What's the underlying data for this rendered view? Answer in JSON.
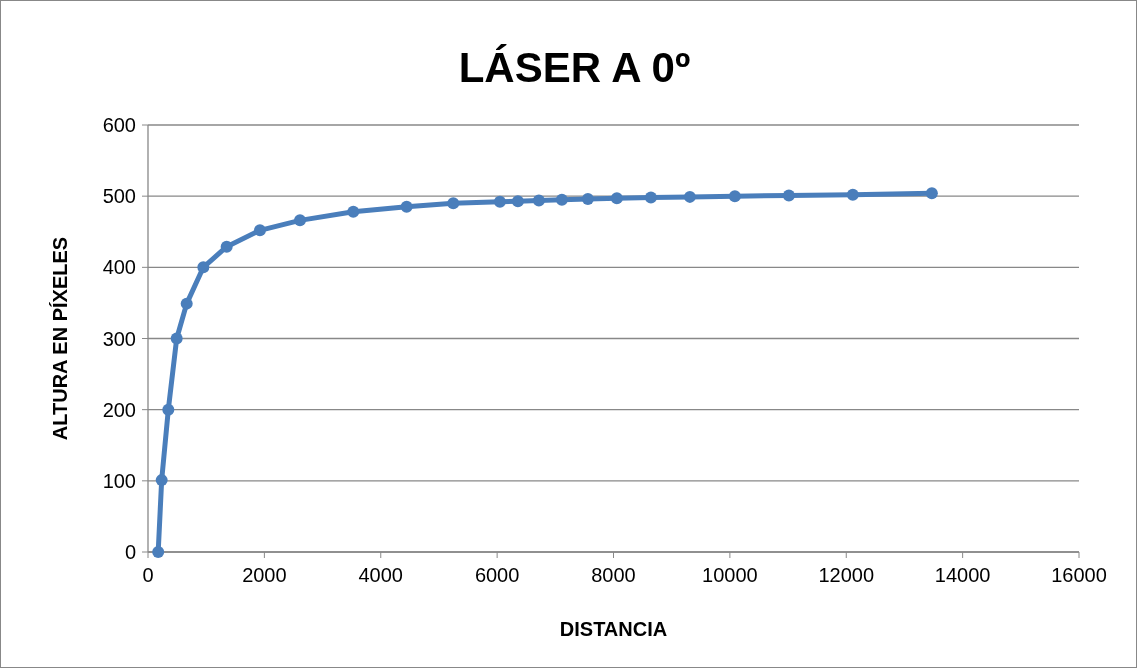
{
  "chart_data": {
    "type": "line",
    "title": "LÁSER A 0º",
    "xlabel": "DISTANCIA",
    "ylabel": "ALTURA EN PÍXELES",
    "series": [
      {
        "color": "#4a7ebb",
        "x": [
          175,
          235,
          349,
          493,
          665,
          951,
          1352,
          1924,
          2612,
          3528,
          4445,
          5246,
          6048,
          6357,
          6718,
          7113,
          7560,
          8058,
          8643,
          9313,
          10086,
          11014,
          12113,
          13471
        ],
        "values": [
          0,
          101,
          200,
          300,
          349,
          400,
          429,
          452,
          466,
          478,
          485,
          490,
          492,
          493,
          494,
          495,
          496,
          497,
          498,
          499,
          500,
          501,
          502,
          504
        ]
      }
    ],
    "xlim": [
      0,
      16000
    ],
    "xticks": [
      0,
      2000,
      4000,
      6000,
      8000,
      10000,
      12000,
      14000,
      16000
    ],
    "ylim": [
      0,
      600
    ],
    "yticks": [
      0,
      100,
      200,
      300,
      400,
      500,
      600
    ],
    "grid": "y",
    "marker": "circle",
    "line_style": "solid"
  }
}
